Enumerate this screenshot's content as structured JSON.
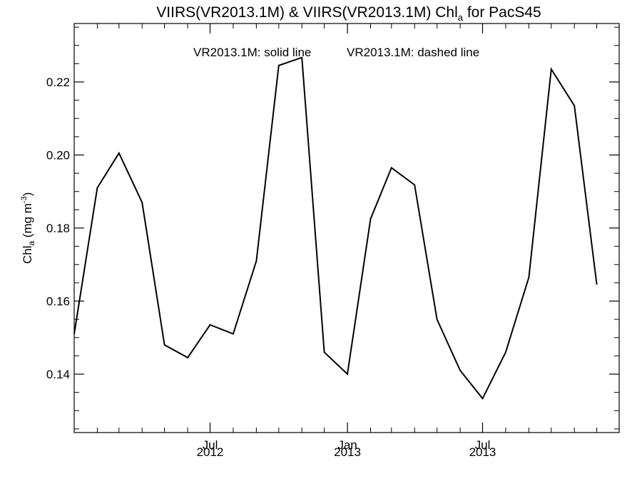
{
  "chart_data": {
    "type": "line",
    "title": {
      "main": "VIIRS(VR2013.1M) & VIIRS(VR2013.1M)  Chl",
      "subscript": "a",
      "suffix": " for PacS45"
    },
    "ylabel": {
      "main": "Chl",
      "subscript": "a",
      "units": " (mg m",
      "units_sup": "-3",
      "units_close": ")"
    },
    "legend": {
      "solid": "VR2013.1M: solid line",
      "dashed": "VR2013.1M: dashed line"
    },
    "ylim": [
      0.124,
      0.236
    ],
    "xlim": [
      "2012-01-01",
      "2013-12-31"
    ],
    "y_ticks": [
      0.14,
      0.16,
      0.18,
      0.2,
      0.22
    ],
    "y_tick_labels": [
      "0.14",
      "0.16",
      "0.18",
      "0.20",
      "0.22"
    ],
    "x_ticks": [
      {
        "date": "2012-07-01",
        "month": "Jul",
        "year": "2012"
      },
      {
        "date": "2013-01-01",
        "month": "Jan",
        "year": "2013"
      },
      {
        "date": "2013-07-01",
        "month": "Jul",
        "year": "2013"
      }
    ],
    "series": [
      {
        "style": "solid",
        "color": "#000000",
        "points": [
          [
            "2012-01-01",
            0.151
          ],
          [
            "2012-02-01",
            0.191
          ],
          [
            "2012-03-01",
            0.2005
          ],
          [
            "2012-04-01",
            0.187
          ],
          [
            "2012-05-01",
            0.148
          ],
          [
            "2012-06-01",
            0.1445
          ],
          [
            "2012-07-01",
            0.1535
          ],
          [
            "2012-08-01",
            0.151
          ],
          [
            "2012-09-01",
            0.171
          ],
          [
            "2012-10-01",
            0.2245
          ],
          [
            "2012-11-01",
            0.2267
          ],
          [
            "2012-12-01",
            0.146
          ],
          [
            "2013-01-01",
            0.14
          ],
          [
            "2013-02-01",
            0.1825
          ],
          [
            "2013-03-01",
            0.1965
          ],
          [
            "2013-04-01",
            0.1918
          ],
          [
            "2013-05-01",
            0.155
          ],
          [
            "2013-06-01",
            0.141
          ],
          [
            "2013-07-01",
            0.1333
          ],
          [
            "2013-08-01",
            0.146
          ],
          [
            "2013-09-01",
            0.1665
          ],
          [
            "2013-10-01",
            0.2235
          ],
          [
            "2013-11-01",
            0.2135
          ],
          [
            "2013-12-01",
            0.1645
          ]
        ]
      },
      {
        "style": "dashed",
        "color": "#000000",
        "points": []
      }
    ],
    "grid": false
  }
}
